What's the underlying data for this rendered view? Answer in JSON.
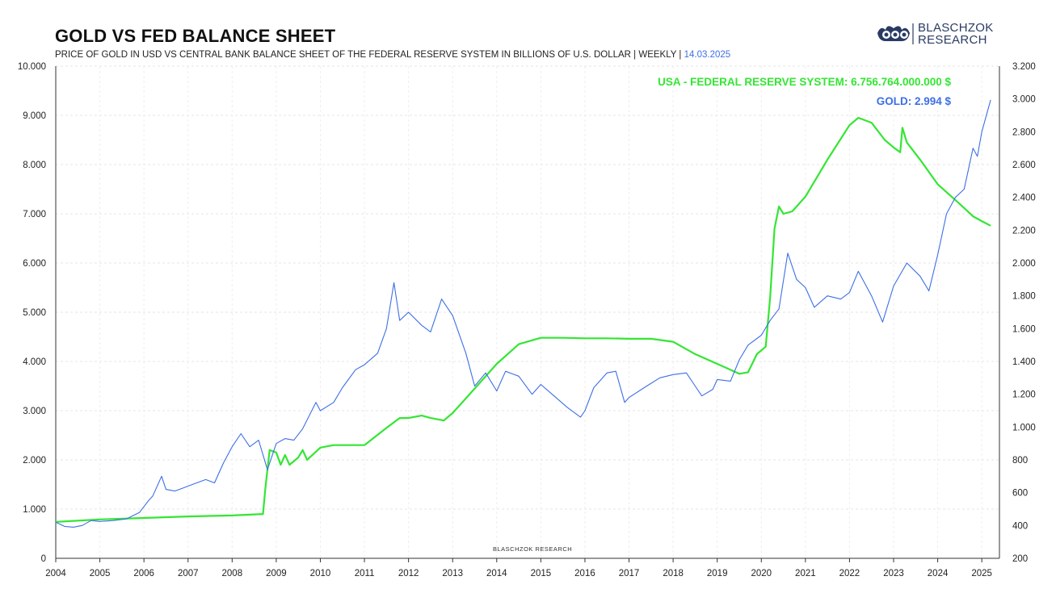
{
  "header": {
    "title": "GOLD VS FED BALANCE SHEET",
    "subtitle": "PRICE OF GOLD IN USD VS CENTRAL BANK BALANCE SHEET OF THE FEDERAL RESERVE SYSTEM IN BILLIONS OF U.S. DOLLAR | WEEKLY |",
    "date": "14.03.2025"
  },
  "logo": {
    "line1": "BLASCHZOK",
    "line2": "RESEARCH",
    "color": "#2a3b63"
  },
  "watermark": "BLASCHZOK  RESEARCH",
  "chart_data": {
    "type": "line",
    "title": "GOLD VS FED BALANCE SHEET",
    "x_range": [
      2004,
      2025.4
    ],
    "x_ticks": [
      2004,
      2005,
      2006,
      2007,
      2008,
      2009,
      2010,
      2011,
      2012,
      2013,
      2014,
      2015,
      2016,
      2017,
      2018,
      2019,
      2020,
      2021,
      2022,
      2023,
      2024,
      2025
    ],
    "left_axis": {
      "range": [
        0,
        10000
      ],
      "ticks": [
        0,
        1000,
        2000,
        3000,
        4000,
        5000,
        6000,
        7000,
        8000,
        9000,
        10000
      ],
      "tick_labels": [
        "0",
        "1.000",
        "2.000",
        "3.000",
        "4.000",
        "5.000",
        "6.000",
        "7.000",
        "8.000",
        "9.000",
        "10.000"
      ]
    },
    "right_axis": {
      "range": [
        200,
        3200
      ],
      "ticks": [
        200,
        400,
        600,
        800,
        1000,
        1200,
        1400,
        1600,
        1800,
        2000,
        2200,
        2400,
        2600,
        2800,
        3000,
        3200
      ],
      "tick_labels": [
        "200",
        "400",
        "600",
        "800",
        "1.000",
        "1.200",
        "1.400",
        "1.600",
        "1.800",
        "2.000",
        "2.200",
        "2.400",
        "2.600",
        "2.800",
        "3.000",
        "3.200"
      ]
    },
    "grid": true,
    "legend_position": "top-right",
    "series": [
      {
        "name": "USA - FEDERAL RESERVE SYSTEM",
        "axis": "left",
        "color": "#33e633",
        "label": "USA - FEDERAL RESERVE SYSTEM: 6.756.764.000.000 $",
        "points": [
          [
            2004.0,
            740
          ],
          [
            2005.0,
            790
          ],
          [
            2006.0,
            820
          ],
          [
            2007.0,
            850
          ],
          [
            2008.0,
            870
          ],
          [
            2008.7,
            900
          ],
          [
            2008.75,
            1400
          ],
          [
            2008.85,
            2200
          ],
          [
            2009.0,
            2150
          ],
          [
            2009.1,
            1900
          ],
          [
            2009.2,
            2100
          ],
          [
            2009.3,
            1900
          ],
          [
            2009.5,
            2050
          ],
          [
            2009.6,
            2200
          ],
          [
            2009.7,
            2000
          ],
          [
            2010.0,
            2250
          ],
          [
            2010.3,
            2300
          ],
          [
            2011.0,
            2300
          ],
          [
            2011.5,
            2650
          ],
          [
            2011.8,
            2850
          ],
          [
            2012.0,
            2850
          ],
          [
            2012.3,
            2900
          ],
          [
            2012.5,
            2850
          ],
          [
            2012.8,
            2800
          ],
          [
            2013.0,
            2950
          ],
          [
            2013.5,
            3450
          ],
          [
            2014.0,
            3950
          ],
          [
            2014.5,
            4350
          ],
          [
            2015.0,
            4480
          ],
          [
            2015.5,
            4480
          ],
          [
            2016.0,
            4470
          ],
          [
            2016.5,
            4470
          ],
          [
            2017.0,
            4460
          ],
          [
            2017.5,
            4460
          ],
          [
            2018.0,
            4400
          ],
          [
            2018.5,
            4150
          ],
          [
            2019.0,
            3950
          ],
          [
            2019.5,
            3750
          ],
          [
            2019.7,
            3780
          ],
          [
            2019.9,
            4150
          ],
          [
            2020.1,
            4300
          ],
          [
            2020.2,
            5300
          ],
          [
            2020.3,
            6700
          ],
          [
            2020.4,
            7150
          ],
          [
            2020.5,
            7000
          ],
          [
            2020.7,
            7050
          ],
          [
            2021.0,
            7350
          ],
          [
            2021.5,
            8100
          ],
          [
            2022.0,
            8800
          ],
          [
            2022.2,
            8950
          ],
          [
            2022.5,
            8850
          ],
          [
            2022.8,
            8500
          ],
          [
            2023.0,
            8350
          ],
          [
            2023.15,
            8250
          ],
          [
            2023.2,
            8750
          ],
          [
            2023.3,
            8450
          ],
          [
            2023.6,
            8100
          ],
          [
            2024.0,
            7600
          ],
          [
            2024.5,
            7200
          ],
          [
            2024.8,
            6950
          ],
          [
            2025.0,
            6850
          ],
          [
            2025.2,
            6757
          ]
        ]
      },
      {
        "name": "GOLD",
        "axis": "right",
        "color": "#3d6fe6",
        "label": "GOLD: 2.994 $",
        "points": [
          [
            2004.0,
            420
          ],
          [
            2004.2,
            395
          ],
          [
            2004.4,
            390
          ],
          [
            2004.6,
            400
          ],
          [
            2004.8,
            430
          ],
          [
            2005.0,
            425
          ],
          [
            2005.3,
            430
          ],
          [
            2005.6,
            440
          ],
          [
            2005.9,
            480
          ],
          [
            2006.1,
            550
          ],
          [
            2006.2,
            580
          ],
          [
            2006.4,
            700
          ],
          [
            2006.5,
            620
          ],
          [
            2006.7,
            610
          ],
          [
            2006.9,
            630
          ],
          [
            2007.0,
            640
          ],
          [
            2007.4,
            680
          ],
          [
            2007.6,
            660
          ],
          [
            2007.8,
            780
          ],
          [
            2008.0,
            880
          ],
          [
            2008.2,
            960
          ],
          [
            2008.4,
            880
          ],
          [
            2008.6,
            920
          ],
          [
            2008.8,
            740
          ],
          [
            2009.0,
            900
          ],
          [
            2009.2,
            930
          ],
          [
            2009.4,
            920
          ],
          [
            2009.6,
            990
          ],
          [
            2009.9,
            1150
          ],
          [
            2010.0,
            1100
          ],
          [
            2010.3,
            1150
          ],
          [
            2010.5,
            1240
          ],
          [
            2010.8,
            1350
          ],
          [
            2011.0,
            1380
          ],
          [
            2011.3,
            1450
          ],
          [
            2011.5,
            1600
          ],
          [
            2011.67,
            1880
          ],
          [
            2011.8,
            1650
          ],
          [
            2012.0,
            1700
          ],
          [
            2012.3,
            1620
          ],
          [
            2012.5,
            1580
          ],
          [
            2012.75,
            1780
          ],
          [
            2013.0,
            1680
          ],
          [
            2013.3,
            1450
          ],
          [
            2013.5,
            1250
          ],
          [
            2013.75,
            1330
          ],
          [
            2014.0,
            1220
          ],
          [
            2014.2,
            1340
          ],
          [
            2014.5,
            1310
          ],
          [
            2014.8,
            1200
          ],
          [
            2015.0,
            1260
          ],
          [
            2015.3,
            1190
          ],
          [
            2015.6,
            1120
          ],
          [
            2015.9,
            1060
          ],
          [
            2016.0,
            1100
          ],
          [
            2016.2,
            1240
          ],
          [
            2016.5,
            1330
          ],
          [
            2016.7,
            1340
          ],
          [
            2016.9,
            1150
          ],
          [
            2017.0,
            1180
          ],
          [
            2017.4,
            1250
          ],
          [
            2017.7,
            1300
          ],
          [
            2018.0,
            1320
          ],
          [
            2018.3,
            1330
          ],
          [
            2018.5,
            1250
          ],
          [
            2018.65,
            1190
          ],
          [
            2018.9,
            1230
          ],
          [
            2019.0,
            1290
          ],
          [
            2019.3,
            1280
          ],
          [
            2019.5,
            1410
          ],
          [
            2019.7,
            1500
          ],
          [
            2020.0,
            1560
          ],
          [
            2020.2,
            1650
          ],
          [
            2020.4,
            1720
          ],
          [
            2020.6,
            2060
          ],
          [
            2020.8,
            1900
          ],
          [
            2021.0,
            1850
          ],
          [
            2021.2,
            1730
          ],
          [
            2021.5,
            1800
          ],
          [
            2021.8,
            1780
          ],
          [
            2022.0,
            1820
          ],
          [
            2022.2,
            1950
          ],
          [
            2022.5,
            1800
          ],
          [
            2022.75,
            1640
          ],
          [
            2023.0,
            1860
          ],
          [
            2023.3,
            2000
          ],
          [
            2023.6,
            1920
          ],
          [
            2023.8,
            1830
          ],
          [
            2024.0,
            2050
          ],
          [
            2024.2,
            2300
          ],
          [
            2024.4,
            2400
          ],
          [
            2024.6,
            2450
          ],
          [
            2024.8,
            2700
          ],
          [
            2024.9,
            2650
          ],
          [
            2025.0,
            2800
          ],
          [
            2025.2,
            2994
          ]
        ]
      }
    ]
  }
}
